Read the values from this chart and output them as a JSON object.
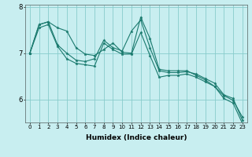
{
  "xlabel": "Humidex (Indice chaleur)",
  "background_color": "#c8eef0",
  "grid_color": "#88cccc",
  "line_color": "#1a7a6e",
  "x": [
    0,
    1,
    2,
    3,
    4,
    5,
    6,
    7,
    8,
    9,
    10,
    11,
    12,
    13,
    14,
    15,
    16,
    17,
    18,
    19,
    20,
    21,
    22,
    23
  ],
  "line1": [
    7.0,
    7.62,
    7.68,
    7.55,
    7.48,
    7.12,
    6.98,
    6.95,
    7.08,
    7.22,
    7.02,
    7.0,
    7.78,
    7.32,
    6.65,
    6.62,
    6.62,
    6.62,
    6.52,
    6.42,
    6.28,
    6.08,
    5.98,
    5.62
  ],
  "line2": [
    7.0,
    7.62,
    7.68,
    7.18,
    7.0,
    6.85,
    6.82,
    6.88,
    7.28,
    7.12,
    7.05,
    7.48,
    7.72,
    7.12,
    6.62,
    6.58,
    6.58,
    6.6,
    6.55,
    6.45,
    6.35,
    6.1,
    6.02,
    5.55
  ],
  "line3": [
    7.0,
    7.55,
    7.62,
    7.15,
    6.88,
    6.78,
    6.75,
    6.72,
    7.22,
    7.08,
    6.98,
    6.98,
    7.45,
    6.95,
    6.48,
    6.52,
    6.52,
    6.55,
    6.48,
    6.38,
    6.28,
    6.02,
    5.92,
    5.48
  ],
  "ylim": [
    5.5,
    8.05
  ],
  "xlim": [
    -0.5,
    23.5
  ],
  "yticks": [
    6,
    7,
    8
  ],
  "xticks": [
    0,
    1,
    2,
    3,
    4,
    5,
    6,
    7,
    8,
    9,
    10,
    11,
    12,
    13,
    14,
    15,
    16,
    17,
    18,
    19,
    20,
    21,
    22,
    23
  ],
  "xtick_fontsize": 5.0,
  "ytick_fontsize": 6.0,
  "xlabel_fontsize": 6.5,
  "linewidth": 0.8,
  "markersize": 2.5
}
